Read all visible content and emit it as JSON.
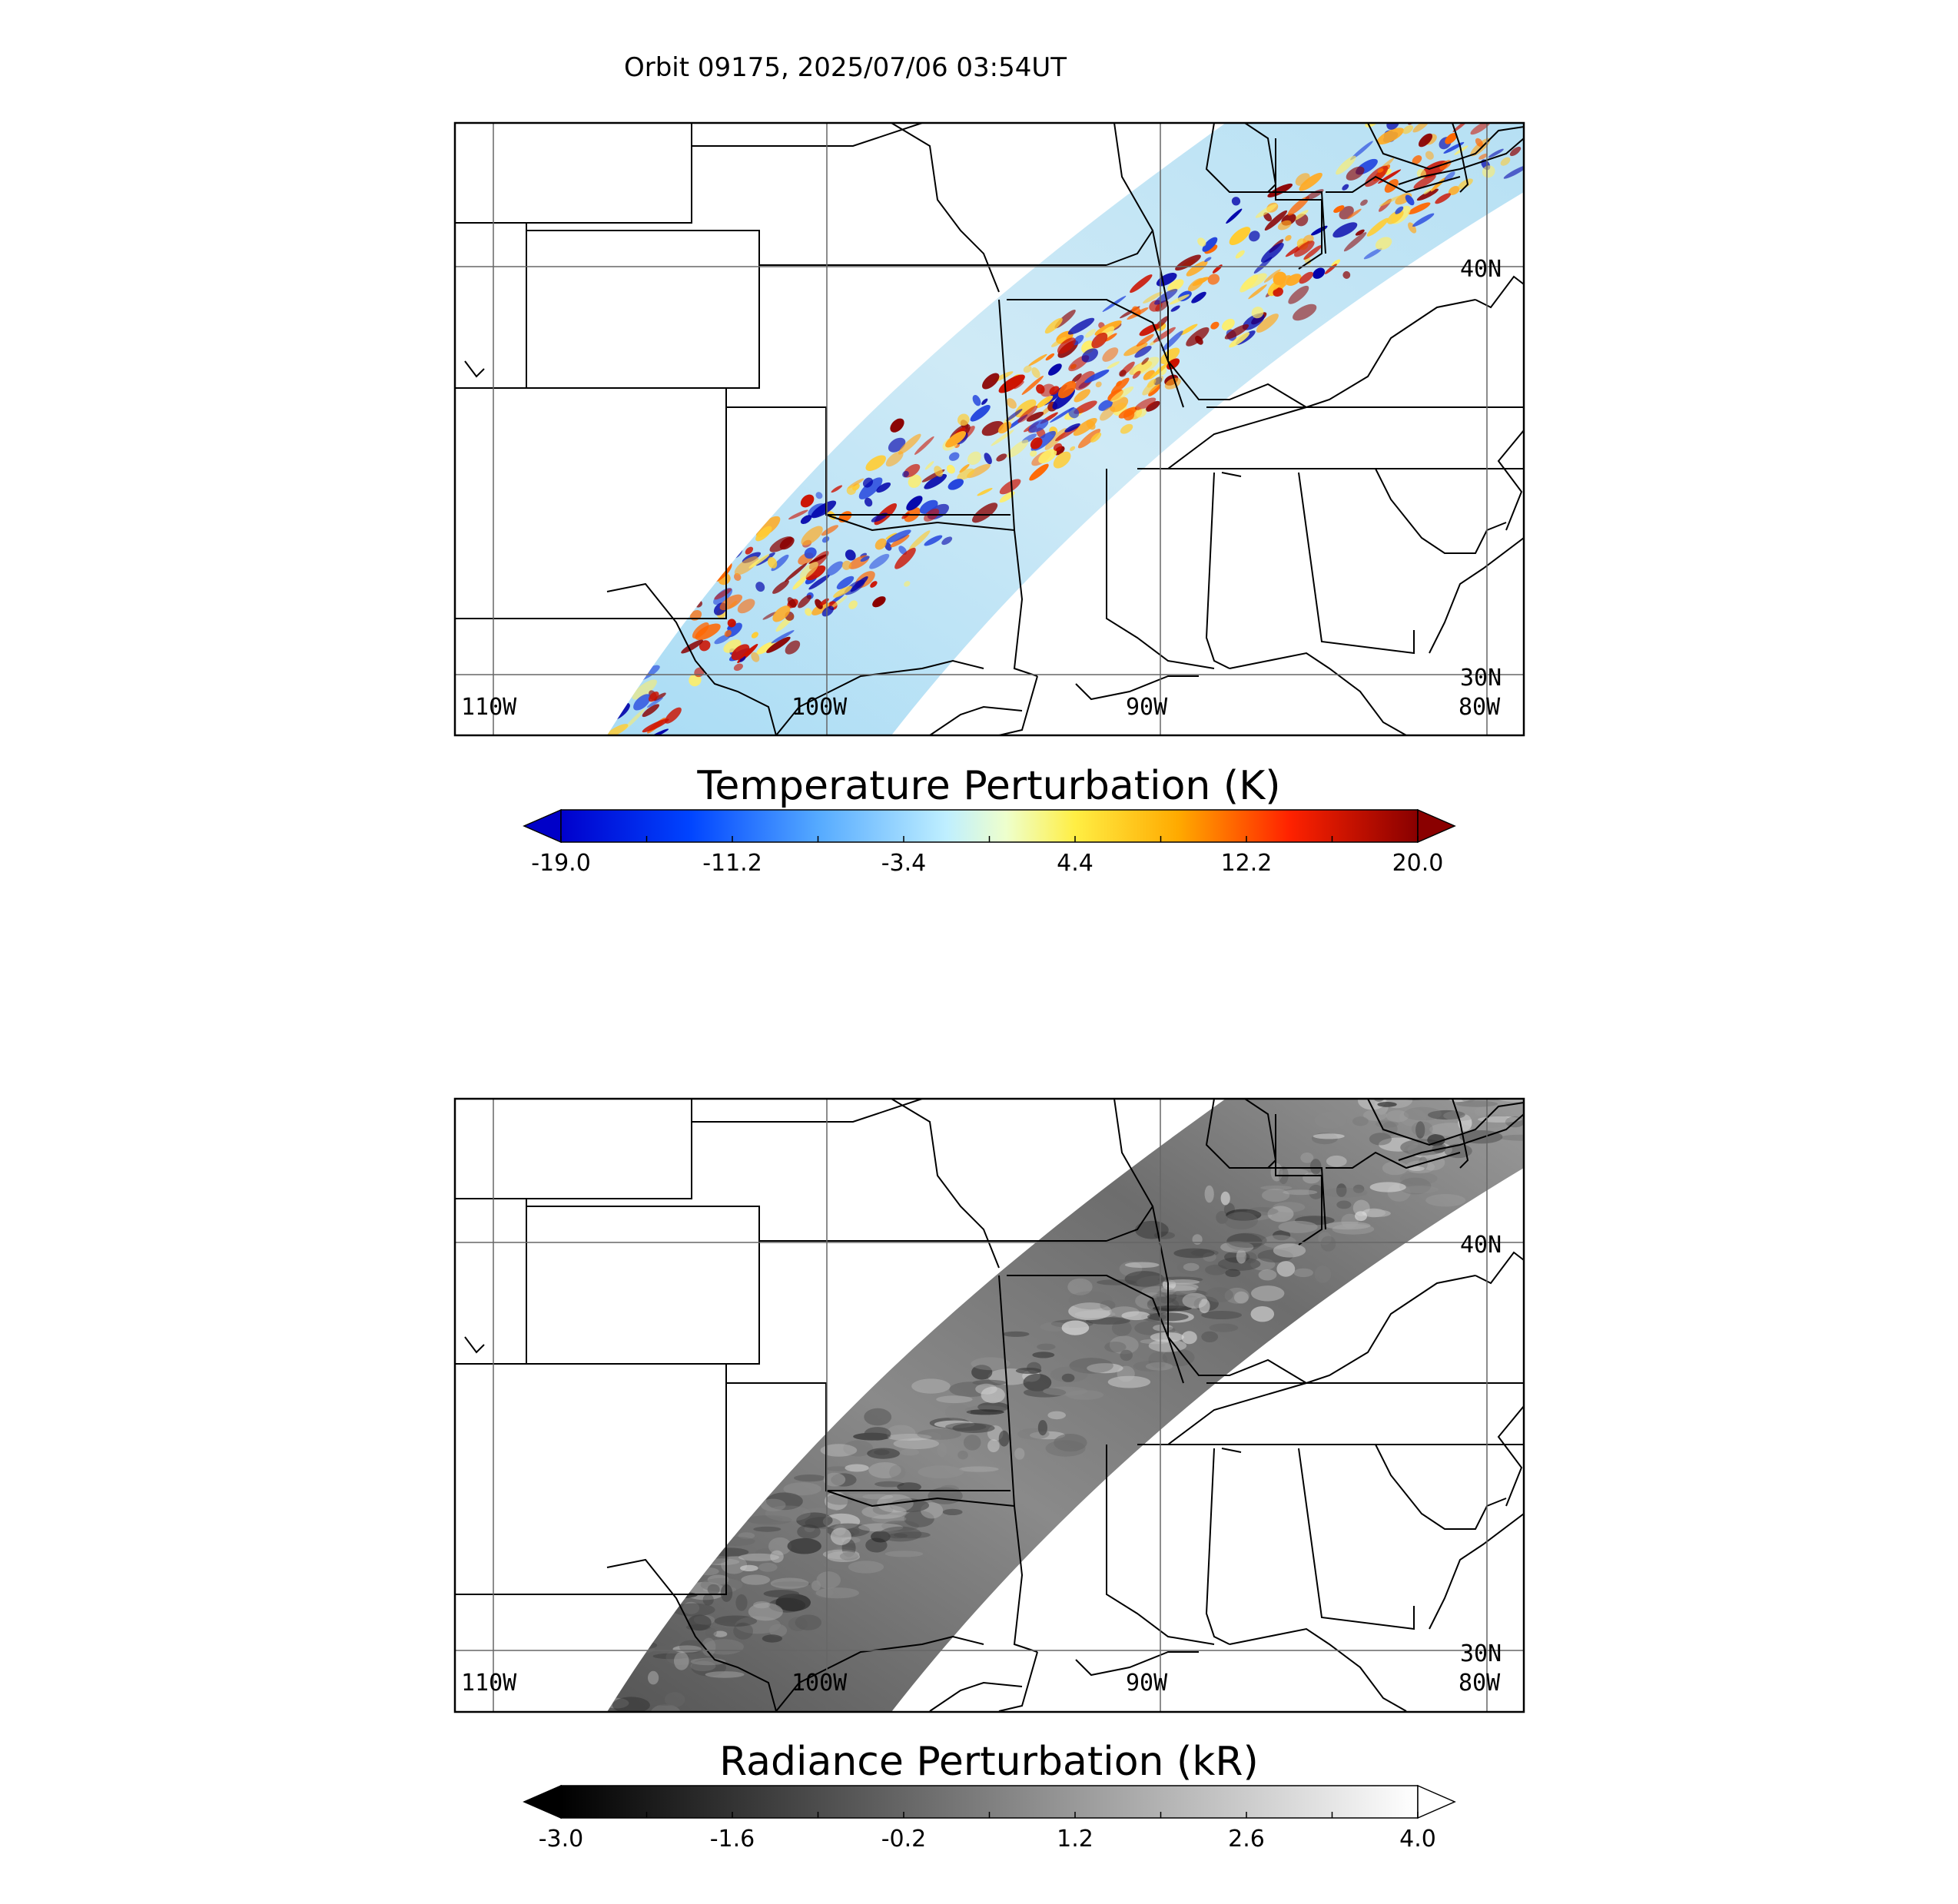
{
  "figure": {
    "title": "Orbit 09175, 2025/07/06 03:54UT"
  },
  "panels": [
    {
      "id": "temperature",
      "colorbar_title": "Temperature Perturbation (K)",
      "colormap": "jet",
      "tick_labels": [
        "-19.0",
        "-11.2",
        "-3.4",
        "4.4",
        "12.2",
        "20.0"
      ],
      "range": [
        -19.0,
        20.0
      ],
      "extend": "both",
      "colors": [
        "#00008f",
        "#0033ff",
        "#33aaff",
        "#bff0ff",
        "#ffff66",
        "#ffb000",
        "#ff3300",
        "#8f0000"
      ]
    },
    {
      "id": "radiance",
      "colorbar_title": "Radiance Perturbation (kR)",
      "colormap": "gray",
      "tick_labels": [
        "-3.0",
        "-1.6",
        "-0.2",
        "1.2",
        "2.6",
        "4.0"
      ],
      "range": [
        -3.0,
        4.0
      ],
      "extend": "both",
      "colors": [
        "#000000",
        "#ffffff"
      ]
    }
  ],
  "map_labels": {
    "lon": [
      "110W",
      "100W",
      "90W",
      "80W"
    ],
    "lat": [
      "40N",
      "30N"
    ]
  },
  "map": {
    "extent_lon": [
      -111,
      -82
    ],
    "extent_lat": [
      26.5,
      45
    ],
    "gridlines": true
  }
}
